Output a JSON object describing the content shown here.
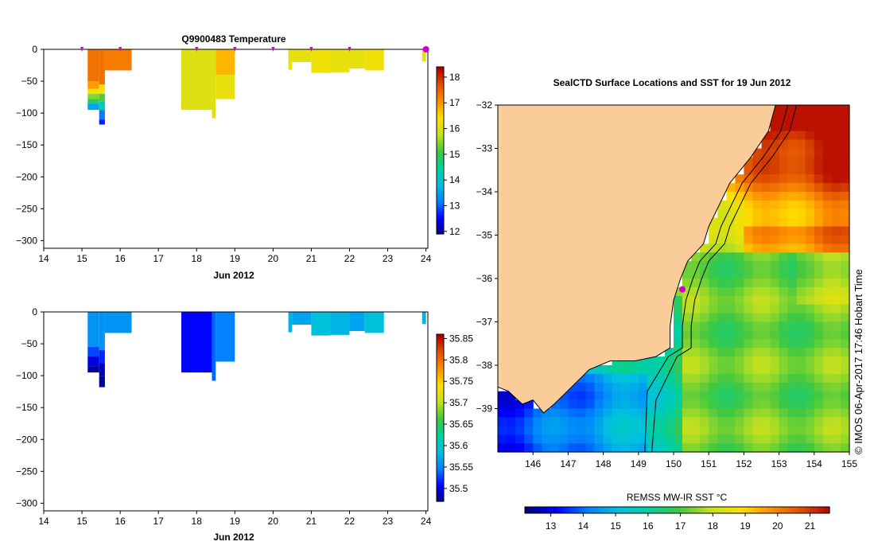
{
  "chart_data": [
    {
      "type": "heatmap",
      "title": "Q9900483  Temperature",
      "xlabel": "Jun 2012",
      "xticks": [
        14,
        15,
        16,
        17,
        18,
        19,
        20,
        21,
        22,
        23,
        24
      ],
      "yticks": [
        0,
        -50,
        -100,
        -150,
        -200,
        -250,
        -300
      ],
      "xlim": [
        14,
        24.05
      ],
      "ylim": [
        -312,
        0
      ],
      "colorbar": {
        "ticks": [
          12,
          13,
          14,
          15,
          16,
          17,
          18
        ],
        "range": [
          11.9,
          18.4
        ]
      },
      "profiles": [
        {
          "t0": 15.15,
          "t1": 15.45,
          "depth": 95,
          "segments": [
            [
              0,
              50,
              17.4
            ],
            [
              50,
              62,
              17.0
            ],
            [
              62,
              70,
              16.3
            ],
            [
              70,
              78,
              15.5
            ],
            [
              78,
              85,
              14.9
            ],
            [
              85,
              95,
              13.6
            ]
          ]
        },
        {
          "t0": 15.45,
          "t1": 15.6,
          "depth": 118,
          "segments": [
            [
              0,
              55,
              17.4
            ],
            [
              55,
              70,
              16.4
            ],
            [
              70,
              82,
              15.2
            ],
            [
              82,
              95,
              14.3
            ],
            [
              95,
              110,
              13.2
            ],
            [
              110,
              118,
              12.7
            ]
          ]
        },
        {
          "t0": 15.6,
          "t1": 16.3,
          "depth": 33,
          "segments": [
            [
              0,
              33,
              17.3
            ]
          ]
        },
        {
          "t0": 17.6,
          "t1": 18.4,
          "depth": 95,
          "segments": [
            [
              0,
              95,
              16.1
            ]
          ]
        },
        {
          "t0": 18.4,
          "t1": 18.5,
          "depth": 108,
          "segments": [
            [
              0,
              108,
              16.1
            ]
          ]
        },
        {
          "t0": 18.5,
          "t1": 19.0,
          "depth": 78,
          "segments": [
            [
              0,
              40,
              16.8
            ],
            [
              40,
              78,
              16.2
            ]
          ]
        },
        {
          "t0": 20.4,
          "t1": 20.5,
          "depth": 32,
          "segments": [
            [
              0,
              32,
              16.2
            ]
          ]
        },
        {
          "t0": 20.5,
          "t1": 21.0,
          "depth": 20,
          "segments": [
            [
              0,
              20,
              16.2
            ]
          ]
        },
        {
          "t0": 21.0,
          "t1": 21.5,
          "depth": 37,
          "segments": [
            [
              0,
              37,
              16.3
            ]
          ]
        },
        {
          "t0": 21.5,
          "t1": 22.0,
          "depth": 36,
          "segments": [
            [
              0,
              36,
              16.2
            ]
          ]
        },
        {
          "t0": 22.0,
          "t1": 22.4,
          "depth": 30,
          "segments": [
            [
              0,
              30,
              16.2
            ]
          ]
        },
        {
          "t0": 22.4,
          "t1": 22.9,
          "depth": 33,
          "segments": [
            [
              0,
              33,
              16.3
            ]
          ]
        },
        {
          "t0": 23.9,
          "t1": 24.0,
          "depth": 19,
          "segments": [
            [
              0,
              19,
              16.2
            ]
          ]
        }
      ]
    },
    {
      "type": "heatmap",
      "title": "",
      "xlabel": "Jun 2012",
      "xticks": [
        14,
        15,
        16,
        17,
        18,
        19,
        20,
        21,
        22,
        23,
        24
      ],
      "yticks": [
        0,
        -50,
        -100,
        -150,
        -200,
        -250,
        -300
      ],
      "xlim": [
        14,
        24.05
      ],
      "ylim": [
        -312,
        0
      ],
      "colorbar": {
        "ticks": [
          35.5,
          35.55,
          35.6,
          35.65,
          35.7,
          35.75,
          35.8,
          35.85
        ],
        "range": [
          35.47,
          35.86
        ]
      },
      "profiles": [
        {
          "t0": 15.15,
          "t1": 15.45,
          "depth": 95,
          "segments": [
            [
              0,
              55,
              35.56
            ],
            [
              55,
              70,
              35.53
            ],
            [
              70,
              85,
              35.5
            ],
            [
              85,
              95,
              35.48
            ]
          ]
        },
        {
          "t0": 15.45,
          "t1": 15.6,
          "depth": 118,
          "segments": [
            [
              0,
              60,
              35.56
            ],
            [
              60,
              80,
              35.52
            ],
            [
              80,
              100,
              35.49
            ],
            [
              100,
              118,
              35.48
            ]
          ]
        },
        {
          "t0": 15.6,
          "t1": 16.3,
          "depth": 33,
          "segments": [
            [
              0,
              33,
              35.56
            ]
          ]
        },
        {
          "t0": 17.6,
          "t1": 18.4,
          "depth": 95,
          "segments": [
            [
              0,
              95,
              35.51
            ]
          ]
        },
        {
          "t0": 18.4,
          "t1": 18.5,
          "depth": 108,
          "segments": [
            [
              0,
              108,
              35.54
            ]
          ]
        },
        {
          "t0": 18.5,
          "t1": 19.0,
          "depth": 78,
          "segments": [
            [
              0,
              78,
              35.55
            ]
          ]
        },
        {
          "t0": 20.4,
          "t1": 20.5,
          "depth": 32,
          "segments": [
            [
              0,
              32,
              35.58
            ]
          ]
        },
        {
          "t0": 20.5,
          "t1": 21.0,
          "depth": 20,
          "segments": [
            [
              0,
              20,
              35.57
            ]
          ]
        },
        {
          "t0": 21.0,
          "t1": 21.5,
          "depth": 37,
          "segments": [
            [
              0,
              37,
              35.59
            ]
          ]
        },
        {
          "t0": 21.5,
          "t1": 22.0,
          "depth": 36,
          "segments": [
            [
              0,
              36,
              35.58
            ]
          ]
        },
        {
          "t0": 22.0,
          "t1": 22.4,
          "depth": 30,
          "segments": [
            [
              0,
              30,
              35.57
            ]
          ]
        },
        {
          "t0": 22.4,
          "t1": 22.9,
          "depth": 33,
          "segments": [
            [
              0,
              33,
              35.59
            ]
          ]
        },
        {
          "t0": 23.9,
          "t1": 24.0,
          "depth": 19,
          "segments": [
            [
              0,
              19,
              35.58
            ]
          ]
        }
      ]
    },
    {
      "type": "heatmap",
      "title": "SealCTD Surface Locations and SST for 19 Jun 2012",
      "xticks": [
        146,
        147,
        148,
        149,
        150,
        151,
        152,
        153,
        154,
        155
      ],
      "yticks": [
        -32,
        -33,
        -34,
        -35,
        -36,
        -37,
        -38,
        -39
      ],
      "xlim": [
        145,
        155
      ],
      "ylim": [
        -40,
        -32
      ],
      "colorbar_label": "REMSS MW-IR SST °C",
      "colorbar": {
        "ticks": [
          13,
          14,
          15,
          16,
          17,
          18,
          19,
          20,
          21
        ],
        "range": [
          12.2,
          21.6
        ]
      },
      "location_marker": {
        "lon": 150.25,
        "lat": -36.25
      },
      "credit": "©  IMOS 06-Apr-2017 17:46 Hobart Time"
    }
  ],
  "top_markers_days": [
    15.0,
    16.0,
    18.0,
    19.0,
    20.0,
    21.0,
    22.0,
    24.0
  ],
  "colors": {
    "land": "#f9cc99",
    "marker": "#cc00cc",
    "colormap": [
      "#00007f",
      "#0000ff",
      "#0080ff",
      "#00c0e0",
      "#00d0a0",
      "#40c840",
      "#c0e020",
      "#ffe000",
      "#ff9000",
      "#e05000",
      "#b00000"
    ]
  }
}
